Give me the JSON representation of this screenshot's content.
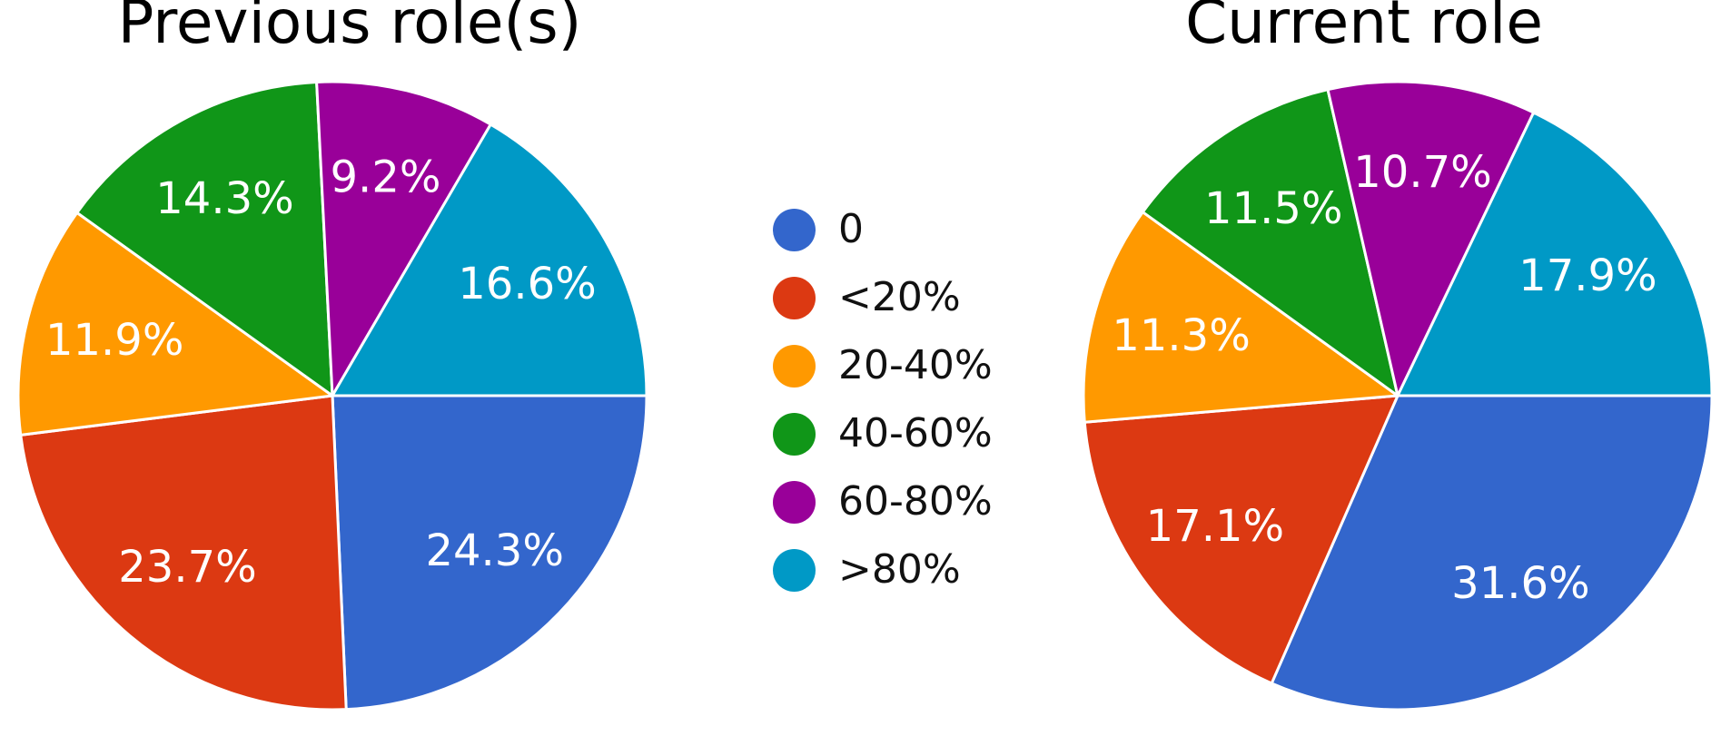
{
  "page": {
    "background_color": "#ffffff",
    "text_color": "#000000"
  },
  "chart_data": [
    {
      "type": "pie",
      "title": "Previous role(s)",
      "categories": [
        "0",
        "<20%",
        "20-40%",
        "40-60%",
        "60-80%",
        ">80%"
      ],
      "values": [
        24.3,
        23.7,
        11.9,
        14.3,
        9.2,
        16.6
      ],
      "slice_labels": [
        "24.3%",
        "23.7%",
        "11.9%",
        "14.3%",
        "9.2%",
        "16.6%"
      ],
      "colors": [
        "#3366cc",
        "#dc3912",
        "#ff9900",
        "#109618",
        "#990099",
        "#0099c6"
      ],
      "start_angle_deg": 0,
      "direction": "clockwise",
      "slice_label_color": "#ffffff",
      "legend_position": "center-between-charts"
    },
    {
      "type": "pie",
      "title": "Current role",
      "categories": [
        "0",
        "<20%",
        "20-40%",
        "40-60%",
        "60-80%",
        ">80%"
      ],
      "values": [
        31.6,
        17.1,
        11.3,
        11.5,
        10.7,
        17.9
      ],
      "slice_labels": [
        "31.6%",
        "17.1%",
        "11.3%",
        "11.5%",
        "10.7%",
        "17.9%"
      ],
      "colors": [
        "#3366cc",
        "#dc3912",
        "#ff9900",
        "#109618",
        "#990099",
        "#0099c6"
      ],
      "start_angle_deg": 0,
      "direction": "clockwise",
      "slice_label_color": "#ffffff",
      "legend_position": "center-between-charts"
    }
  ],
  "legend": {
    "items": [
      {
        "label": "0",
        "color": "#3366cc"
      },
      {
        "label": "<20%",
        "color": "#dc3912"
      },
      {
        "label": "20-40%",
        "color": "#ff9900"
      },
      {
        "label": "40-60%",
        "color": "#109618"
      },
      {
        "label": "60-80%",
        "color": "#990099"
      },
      {
        "label": ">80%",
        "color": "#0099c6"
      }
    ]
  }
}
